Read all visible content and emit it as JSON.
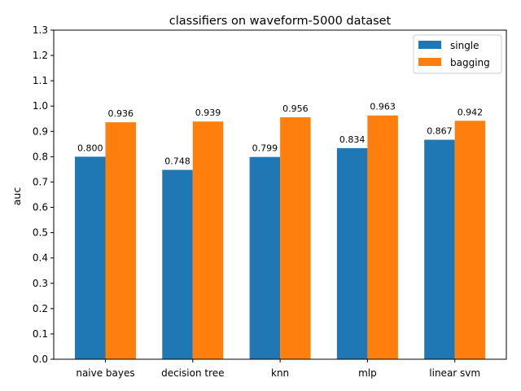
{
  "chart_data": {
    "type": "bar",
    "title": "classifiers on waveform-5000 dataset",
    "xlabel": "",
    "ylabel": "auc",
    "categories": [
      "naive bayes",
      "decision tree",
      "knn",
      "mlp",
      "linear svm"
    ],
    "series": [
      {
        "name": "single",
        "color": "#1f77b4",
        "values": [
          0.8,
          0.748,
          0.799,
          0.834,
          0.867
        ],
        "labels": [
          "0.800",
          "0.748",
          "0.799",
          "0.834",
          "0.867"
        ]
      },
      {
        "name": "bagging",
        "color": "#ff7f0e",
        "values": [
          0.936,
          0.939,
          0.956,
          0.963,
          0.942
        ],
        "labels": [
          "0.936",
          "0.939",
          "0.956",
          "0.963",
          "0.942"
        ]
      }
    ],
    "ylim": [
      0,
      1.3
    ],
    "yticks": [
      "0.0",
      "0.1",
      "0.2",
      "0.3",
      "0.4",
      "0.5",
      "0.6",
      "0.7",
      "0.8",
      "0.9",
      "1.0",
      "1.1",
      "1.2",
      "1.3"
    ],
    "grid": false,
    "legend_position": "top-right"
  }
}
